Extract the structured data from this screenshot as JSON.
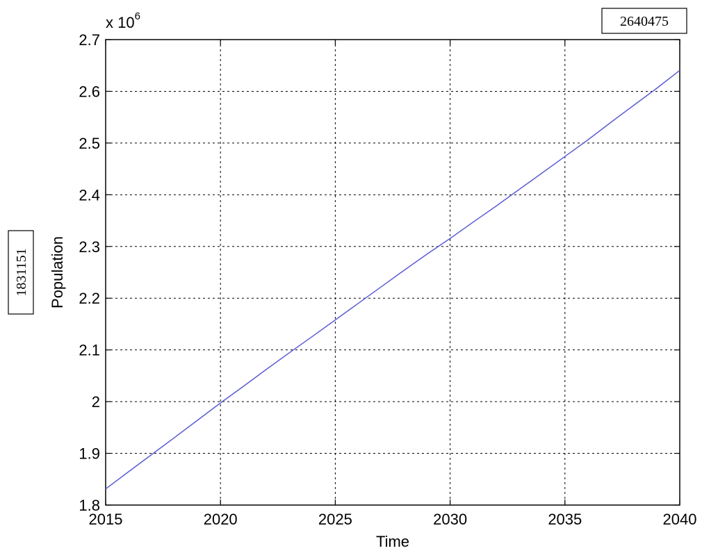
{
  "chart_data": {
    "type": "line",
    "xlabel": "Time",
    "ylabel": "Population",
    "x_ticks": [
      "2015",
      "2020",
      "2025",
      "2030",
      "2035",
      "2040"
    ],
    "y_ticks": [
      "1.8",
      "1.9",
      "2",
      "2.1",
      "2.2",
      "2.3",
      "2.4",
      "2.5",
      "2.6",
      "2.7"
    ],
    "y_scale_prefix": "x 10",
    "y_scale_exponent": "6",
    "xlim": [
      2015,
      2040
    ],
    "ylim": [
      1.8,
      2.7
    ],
    "y_multiplier": 1000000,
    "grid": true,
    "line_color": "#5b5bd6",
    "series": [
      {
        "x": [
          2015,
          2016,
          2017,
          2018,
          2019,
          2020,
          2021,
          2022,
          2023,
          2024,
          2025,
          2026,
          2027,
          2028,
          2029,
          2030,
          2031,
          2032,
          2033,
          2034,
          2035,
          2036,
          2037,
          2038,
          2039,
          2040
        ],
        "values": [
          1.8312,
          1.8645,
          1.8975,
          1.9305,
          1.964,
          1.9975,
          2.0295,
          2.0625,
          2.0945,
          2.126,
          2.158,
          2.19,
          2.222,
          2.254,
          2.2855,
          2.3155,
          2.347,
          2.378,
          2.41,
          2.442,
          2.474,
          2.506,
          2.54,
          2.573,
          2.606,
          2.6405
        ]
      }
    ],
    "annotations": [
      {
        "text": "1831151",
        "position": "left-vertical"
      },
      {
        "text": "2640475",
        "position": "top-right"
      }
    ]
  }
}
